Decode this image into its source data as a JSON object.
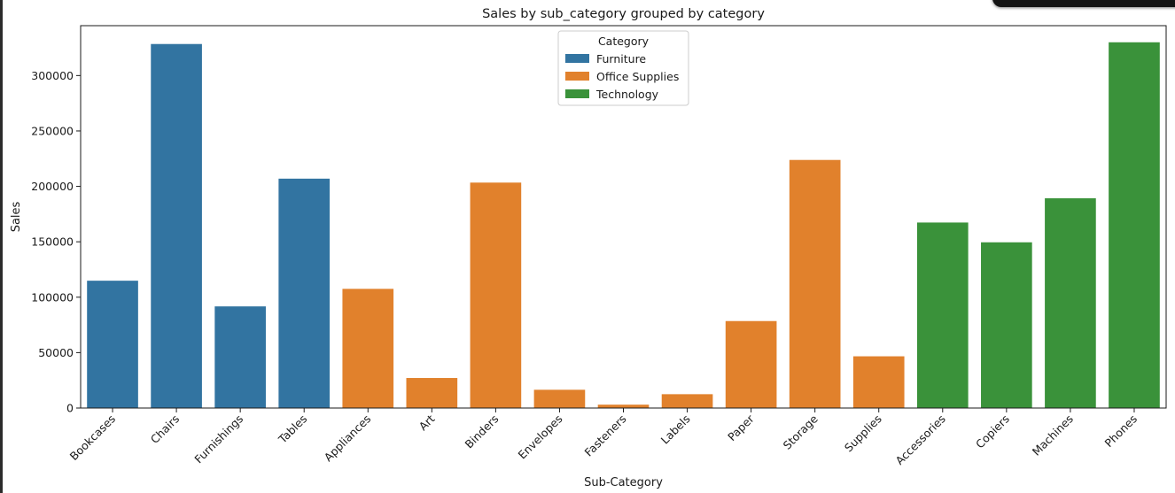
{
  "chart_data": {
    "type": "bar",
    "title": "Sales by sub_category grouped by category",
    "xlabel": "Sub-Category",
    "ylabel": "Sales",
    "ylim": [
      0,
      345000
    ],
    "yticks": [
      0,
      50000,
      100000,
      150000,
      200000,
      250000,
      300000
    ],
    "categories": [
      "Bookcases",
      "Chairs",
      "Furnishings",
      "Tables",
      "Appliances",
      "Art",
      "Binders",
      "Envelopes",
      "Fasteners",
      "Labels",
      "Paper",
      "Storage",
      "Supplies",
      "Accessories",
      "Copiers",
      "Machines",
      "Phones"
    ],
    "values": [
      114880,
      328449,
      91705,
      206966,
      107532,
      27119,
      203413,
      16476,
      3024,
      12486,
      78479,
      223844,
      46674,
      167380,
      149528,
      189239,
      330007
    ],
    "category_group": [
      "Furniture",
      "Furniture",
      "Furniture",
      "Furniture",
      "Office Supplies",
      "Office Supplies",
      "Office Supplies",
      "Office Supplies",
      "Office Supplies",
      "Office Supplies",
      "Office Supplies",
      "Office Supplies",
      "Office Supplies",
      "Technology",
      "Technology",
      "Technology",
      "Technology"
    ],
    "legend": {
      "title": "Category",
      "placement": "top-center",
      "entries": [
        {
          "name": "Furniture",
          "color": "#3274a1"
        },
        {
          "name": "Office Supplies",
          "color": "#e1812c"
        },
        {
          "name": "Technology",
          "color": "#3a923a"
        }
      ]
    },
    "grid": false
  }
}
